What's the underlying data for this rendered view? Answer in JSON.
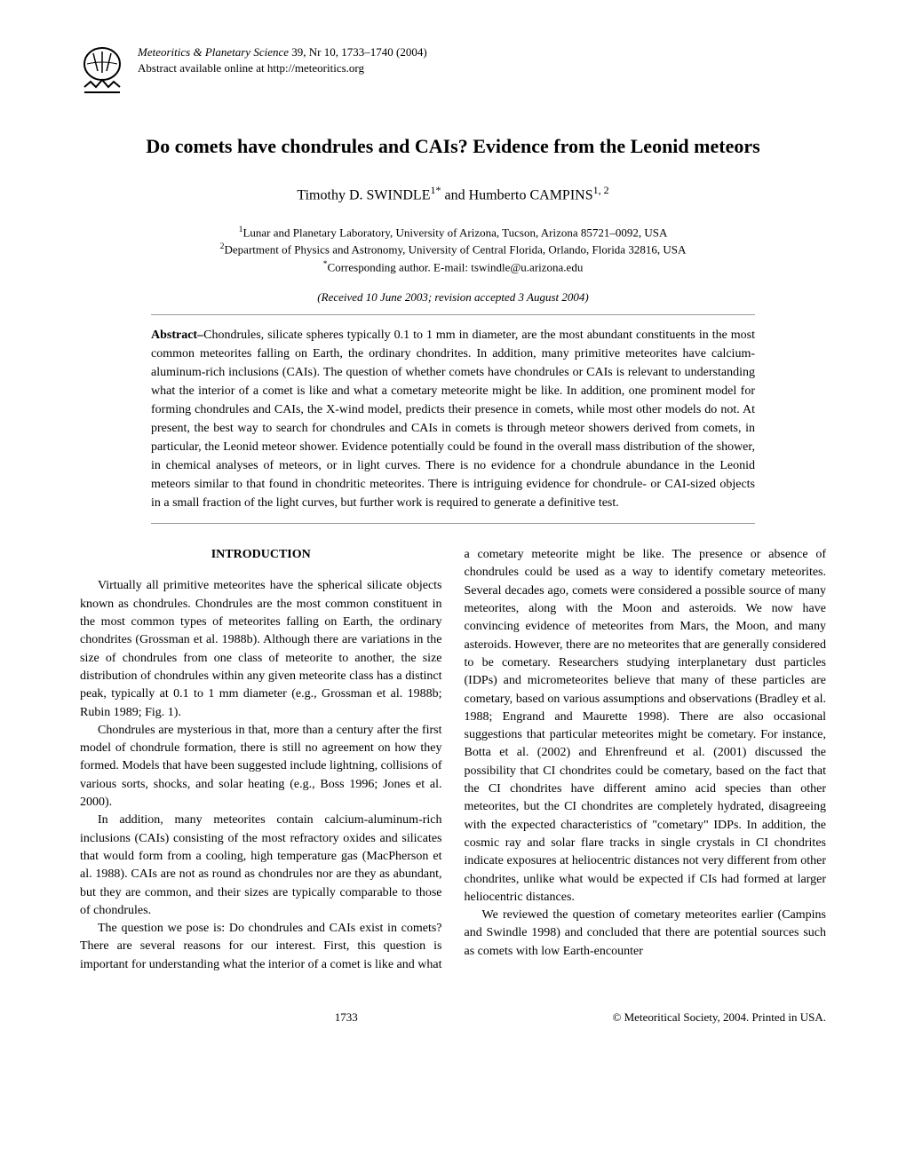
{
  "journal": {
    "name": "Meteoritics & Planetary Science",
    "citation": " 39, Nr 10, 1733–1740 (2004)",
    "abstract_line": "Abstract available online at http://meteoritics.org"
  },
  "title": "Do comets have chondrules and CAIs? Evidence from the Leonid meteors",
  "authors_html": "Timothy D. SWINDLE<sup>1*</sup> and Humberto CAMPINS<sup>1, 2</sup>",
  "affiliations": {
    "a1": "Lunar and Planetary Laboratory, University of Arizona, Tucson, Arizona 85721–0092, USA",
    "a2": "Department of Physics and Astronomy, University of Central Florida, Orlando, Florida 32816, USA",
    "corr": "Corresponding author. E-mail: tswindle@u.arizona.edu"
  },
  "dates": "(Received 10 June 2003; revision accepted 3 August 2004)",
  "abstract": {
    "label": "Abstract–",
    "text": "Chondrules, silicate spheres typically 0.1 to 1 mm in diameter, are the most abundant constituents in the most common meteorites falling on Earth, the ordinary chondrites. In addition, many primitive meteorites have calcium-aluminum-rich inclusions (CAIs). The question of whether comets have chondrules or CAIs is relevant to understanding what the interior of a comet is like and what a cometary meteorite might be like. In addition, one prominent model for forming chondrules and CAIs, the X-wind model, predicts their presence in comets, while most other models do not. At present, the best way to search for chondrules and CAIs in comets is through meteor showers derived from comets, in particular, the Leonid meteor shower. Evidence potentially could be found in the overall mass distribution of the shower, in chemical analyses of meteors, or in light curves. There is no evidence for a chondrule abundance in the Leonid meteors similar to that found in chondritic meteorites. There is intriguing evidence for chondrule- or CAI-sized objects in a small fraction of the light curves, but further work is required to generate a definitive test."
  },
  "section_heading": "INTRODUCTION",
  "body": {
    "p1": "Virtually all primitive meteorites have the spherical silicate objects known as chondrules. Chondrules are the most common constituent in the most common types of meteorites falling on Earth, the ordinary chondrites (Grossman et al. 1988b). Although there are variations in the size of chondrules from one class of meteorite to another, the size distribution of chondrules within any given meteorite class has a distinct peak, typically at 0.1 to 1 mm diameter (e.g., Grossman et al. 1988b; Rubin 1989; Fig. 1).",
    "p2": "Chondrules are mysterious in that, more than a century after the first model of chondrule formation, there is still no agreement on how they formed. Models that have been suggested include lightning, collisions of various sorts, shocks, and solar heating (e.g., Boss 1996; Jones et al. 2000).",
    "p3": "In addition, many meteorites contain calcium-aluminum-rich inclusions (CAIs) consisting of the most refractory oxides and silicates that would form from a cooling, high temperature gas (MacPherson et al. 1988). CAIs are not as round as chondrules nor are they as abundant, but they are common, and their sizes are typically comparable to those of chondrules.",
    "p4": "The question we pose is: Do chondrules and CAIs exist in comets? There are several reasons for our interest. First, this question is important for understanding what the interior of a comet is like and what a cometary meteorite might be like. The presence or absence of chondrules could be used as a way to identify cometary meteorites. Several decades ago, comets were considered a possible source of many meteorites, along with the Moon and asteroids. We now have convincing evidence of meteorites from Mars, the Moon, and many asteroids. However, there are no meteorites that are generally considered to be cometary. Researchers studying interplanetary dust particles (IDPs) and micrometeorites believe that many of these particles are cometary, based on various assumptions and observations (Bradley et al. 1988; Engrand and Maurette 1998). There are also occasional suggestions that particular meteorites might be cometary. For instance, Botta et al. (2002) and Ehrenfreund et al. (2001) discussed the possibility that CI chondrites could be cometary, based on the fact that the CI chondrites have different amino acid species than other meteorites, but the CI chondrites are completely hydrated, disagreeing with the expected characteristics of \"cometary\" IDPs. In addition, the cosmic ray and solar flare tracks in single crystals in CI chondrites indicate exposures at heliocentric distances not very different from other chondrites, unlike what would be expected if CIs had formed at larger heliocentric distances.",
    "p5": "We reviewed the question of cometary meteorites earlier (Campins and Swindle 1998) and concluded that there are potential sources such as comets with low Earth-encounter"
  },
  "footer": {
    "page": "1733",
    "copyright": "© Meteoritical Society, 2004. Printed in USA."
  },
  "colors": {
    "text": "#000000",
    "background": "#ffffff",
    "rule": "#999999"
  },
  "typography": {
    "body_font": "Times New Roman",
    "body_size_pt": 10.5,
    "title_size_pt": 16,
    "authors_size_pt": 12
  }
}
